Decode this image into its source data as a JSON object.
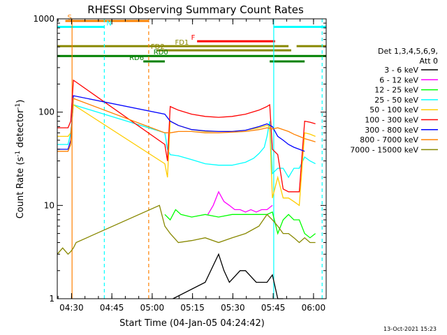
{
  "chart_data": {
    "type": "line",
    "title": "RHESSI Observing Summary Count Rates",
    "xlabel": "Start Time (04-Jan-05 04:24:42)",
    "ylabel_main": "Count Rate (s",
    "ylabel_sup1": "-1",
    "ylabel_mid": " detector",
    "ylabel_sup2": "-1",
    "ylabel_end": ")",
    "yscale": "log",
    "ylim": [
      1,
      1000
    ],
    "xlim_minutes": [
      0,
      100
    ],
    "x_ticks": [
      {
        "min": 5.3,
        "label": "04:30"
      },
      {
        "min": 20.3,
        "label": "04:45"
      },
      {
        "min": 35.3,
        "label": "05:00"
      },
      {
        "min": 50.3,
        "label": "05:15"
      },
      {
        "min": 65.3,
        "label": "05:30"
      },
      {
        "min": 80.3,
        "label": "05:45"
      },
      {
        "min": 95.3,
        "label": "06:00"
      }
    ],
    "y_ticks": [
      {
        "value": 1,
        "label": "1"
      },
      {
        "value": 10,
        "label": "10"
      },
      {
        "value": 100,
        "label": "100"
      },
      {
        "value": 1000,
        "label": "1000"
      }
    ],
    "legend": {
      "header1": "Det 1,3,4,5,6,9,",
      "header2": "Att 0",
      "placement": "right"
    },
    "series": [
      {
        "name": "3 - 6 keV",
        "color": "#000000",
        "x": [
          0,
          5,
          6,
          7,
          40,
          41,
          43,
          55,
          60,
          62,
          64,
          68,
          70,
          74,
          78,
          80,
          82,
          84,
          86,
          88,
          90,
          94,
          96
        ],
        "y": [
          null,
          null,
          null,
          null,
          null,
          null,
          1,
          1.5,
          3,
          2,
          1.5,
          2,
          2,
          1.5,
          1.5,
          1.8,
          1,
          1,
          null,
          null,
          null,
          null,
          null
        ]
      },
      {
        "name": "6 - 12 keV",
        "color": "#ff00ff",
        "x": [
          56,
          58,
          60,
          62,
          64,
          66,
          68,
          70,
          72,
          74,
          76,
          78,
          80
        ],
        "y": [
          8,
          10,
          14,
          11,
          10,
          9,
          9,
          8.5,
          9,
          8.5,
          9,
          9,
          10
        ]
      },
      {
        "name": "12 - 25 keV",
        "color": "#00ff00",
        "x": [
          40,
          42,
          44,
          46,
          50,
          55,
          60,
          65,
          70,
          75,
          78,
          80,
          82,
          84,
          86,
          88,
          90,
          92,
          94,
          96
        ],
        "y": [
          8,
          7,
          9,
          8,
          7.5,
          8,
          7.5,
          8,
          8,
          8,
          8,
          8.5,
          5,
          7,
          8,
          7,
          7,
          5,
          4.5,
          5
        ]
      },
      {
        "name": "25 - 50 keV",
        "color": "#00ffff",
        "x": [
          0,
          4,
          5,
          6,
          40,
          41,
          42,
          45,
          50,
          55,
          60,
          65,
          70,
          73,
          75,
          77,
          78,
          79,
          80,
          82,
          84,
          86,
          88,
          90,
          92,
          94,
          96
        ],
        "y": [
          45,
          45,
          60,
          120,
          60,
          40,
          35,
          34,
          31,
          28,
          27,
          27,
          29,
          32,
          36,
          42,
          55,
          80,
          22,
          25,
          25,
          20,
          25,
          25,
          33,
          30,
          28
        ]
      },
      {
        "name": "50 - 100 keV",
        "color": "#ffcc00",
        "x": [
          0,
          4,
          5,
          6,
          40,
          41,
          42,
          45,
          50,
          55,
          60,
          65,
          70,
          75,
          78,
          79,
          80,
          82,
          84,
          86,
          88,
          90,
          92,
          94,
          96
        ],
        "y": [
          55,
          55,
          60,
          120,
          28,
          20,
          80,
          72,
          65,
          62,
          62,
          62,
          64,
          68,
          72,
          70,
          12,
          20,
          12,
          12,
          11,
          10,
          60,
          58,
          55
        ]
      },
      {
        "name": "100 - 300 keV",
        "color": "#ff0000",
        "x": [
          0,
          4,
          5,
          6,
          40,
          41,
          42,
          45,
          50,
          55,
          60,
          65,
          70,
          75,
          78,
          79,
          80,
          82,
          84,
          86,
          88,
          90,
          92,
          94,
          96
        ],
        "y": [
          68,
          68,
          80,
          220,
          45,
          30,
          115,
          105,
          95,
          90,
          88,
          90,
          95,
          105,
          115,
          120,
          40,
          35,
          15,
          14,
          14,
          14,
          80,
          78,
          75
        ]
      },
      {
        "name": "300 - 800 keV",
        "color": "#0000ff",
        "x": [
          0,
          4,
          5,
          6,
          40,
          42,
          45,
          50,
          55,
          60,
          65,
          70,
          75,
          78,
          80,
          82,
          84,
          86,
          88,
          90,
          92
        ],
        "y": [
          40,
          40,
          50,
          150,
          95,
          80,
          72,
          65,
          63,
          62,
          62,
          64,
          70,
          75,
          70,
          55,
          50,
          45,
          42,
          40,
          38
        ]
      },
      {
        "name": "800 - 7000 keV",
        "color": "#ff8000",
        "x": [
          0,
          4,
          5,
          6,
          40,
          42,
          45,
          50,
          55,
          60,
          65,
          70,
          75,
          78,
          80,
          82,
          84,
          86,
          88,
          90,
          92,
          94,
          96
        ],
        "y": [
          38,
          38,
          45,
          140,
          60,
          60,
          62,
          62,
          60,
          60,
          61,
          62,
          65,
          68,
          66,
          68,
          65,
          62,
          58,
          55,
          52,
          50,
          48
        ]
      },
      {
        "name": "7000 - 15000 keV",
        "color": "#888800",
        "x": [
          0,
          2,
          4,
          5,
          6,
          7,
          38,
          40,
          42,
          45,
          50,
          55,
          60,
          65,
          70,
          75,
          78,
          80,
          82,
          84,
          86,
          88,
          90,
          92,
          94,
          96
        ],
        "y": [
          3,
          3.5,
          3,
          3.2,
          3.5,
          4,
          10,
          6,
          5,
          4,
          4.2,
          4.5,
          4,
          4.5,
          5,
          6,
          8,
          7,
          6,
          5,
          5,
          4.5,
          4,
          4.5,
          4,
          4
        ]
      }
    ],
    "vertical_lines": [
      {
        "min": 5.5,
        "color": "#ff8000",
        "style": "solid"
      },
      {
        "min": 17.5,
        "color": "#00ffff",
        "style": "dashed"
      },
      {
        "min": 34.0,
        "color": "#ff8000",
        "style": "dashed"
      },
      {
        "min": 80.5,
        "color": "#00ffff",
        "style": "solid"
      },
      {
        "min": 98.5,
        "color": "#00ffff",
        "style": "dashed"
      }
    ],
    "state_bars": [
      {
        "label": "S",
        "color": "#ff8000",
        "segments": [
          [
            3,
            34
          ]
        ],
        "value": 950,
        "label_at": 3
      },
      {
        "label": "N",
        "color": "#00ffff",
        "segments": [
          [
            0,
            17.5
          ],
          [
            80.5,
            100
          ]
        ],
        "value": 820,
        "label_at": 17.5
      },
      {
        "label": "F",
        "color": "#ff0000",
        "segments": [
          [
            52,
            81
          ]
        ],
        "value": 575,
        "label_at": 49
      },
      {
        "label": "FD1",
        "color": "#888800",
        "segments": [
          [
            0,
            86
          ],
          [
            89,
            100
          ]
        ],
        "value": 510,
        "label_at": 43
      },
      {
        "label": "FD2",
        "color": "#888800",
        "segments": [
          [
            37,
            87
          ]
        ],
        "value": 460,
        "label_at": 34
      },
      {
        "label": "RD0",
        "color": "#008000",
        "segments": [
          [
            0,
            100
          ]
        ],
        "value": 400,
        "label_at": 35
      },
      {
        "label": "RD6",
        "color": "#008000",
        "segments": [
          [
            32,
            40
          ],
          [
            79,
            92
          ]
        ],
        "value": 350,
        "label_at": 26
      }
    ],
    "grid": false
  },
  "footer": {
    "timestamp": "13-Oct-2021 15:23"
  }
}
